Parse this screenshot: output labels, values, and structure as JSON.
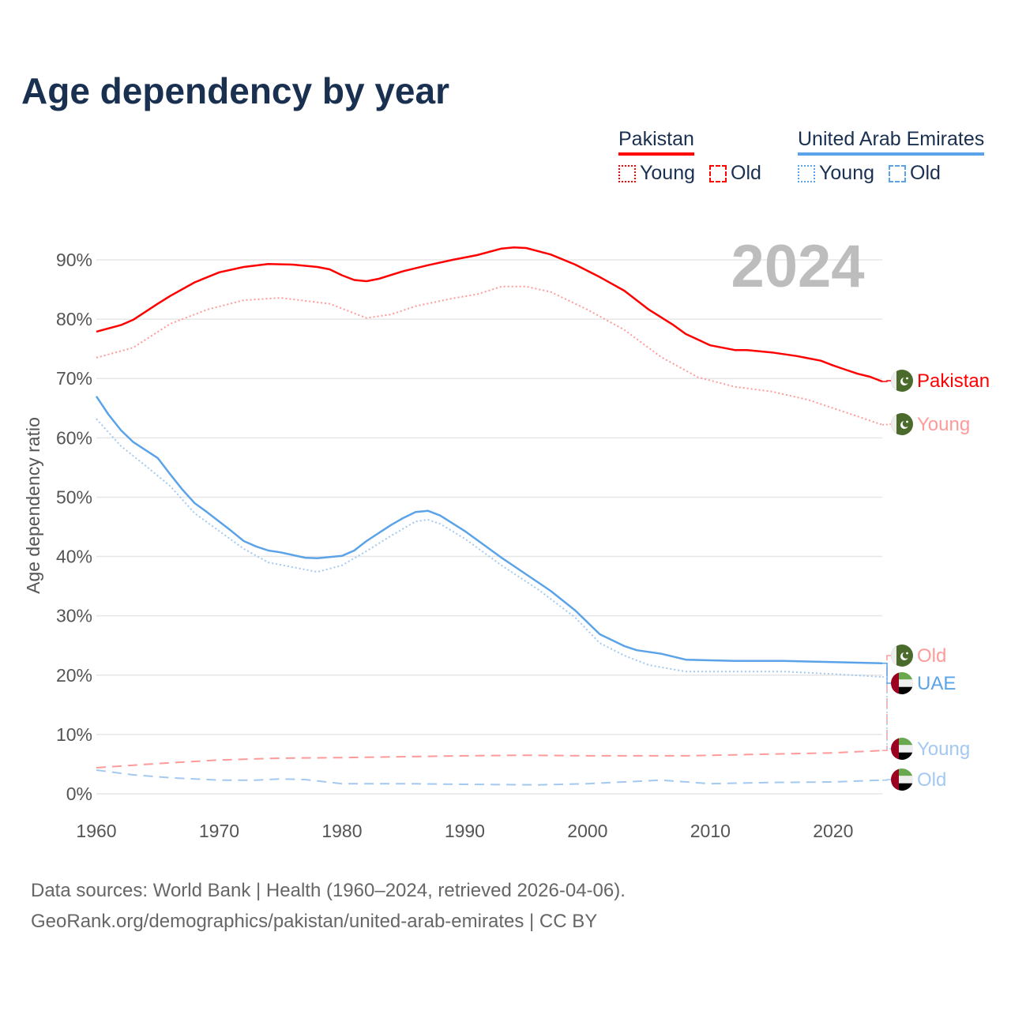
{
  "title": "Age dependency by year",
  "legend": {
    "groups": [
      {
        "name": "Pakistan",
        "color": "#ff0000",
        "items": [
          {
            "label": "Young",
            "style": "dotted"
          },
          {
            "label": "Old",
            "style": "dashed"
          }
        ]
      },
      {
        "name": "United Arab Emirates",
        "color": "#5ba3e8",
        "items": [
          {
            "label": "Young",
            "style": "dotted"
          },
          {
            "label": "Old",
            "style": "dashed"
          }
        ]
      }
    ]
  },
  "footer": {
    "line1": "Data sources: World Bank | Health (1960–2024, retrieved 2026-04-06).",
    "line2": "GeoRank.org/demographics/pakistan/united-arab-emirates | CC BY"
  },
  "chart_data": {
    "type": "line",
    "title": "Age dependency by year",
    "xlabel": "",
    "ylabel": "Age dependency ratio",
    "year_label": "2024",
    "xlim": [
      1960,
      2024
    ],
    "ylim": [
      0,
      90
    ],
    "xticks": [
      1960,
      1970,
      1980,
      1990,
      2000,
      2010,
      2020
    ],
    "yticks": [
      0,
      10,
      20,
      30,
      40,
      50,
      60,
      70,
      80,
      90
    ],
    "ytick_labels": [
      "0%",
      "10%",
      "20%",
      "30%",
      "40%",
      "50%",
      "60%",
      "70%",
      "80%",
      "90%"
    ],
    "grid": true,
    "series": [
      {
        "name": "Pakistan",
        "end_label": "Pakistan",
        "flag": "pakistan",
        "color": "#ff0000",
        "style": "solid",
        "x": [
          1960,
          1962,
          1963,
          1965,
          1966,
          1968,
          1970,
          1972,
          1974,
          1976,
          1978,
          1979,
          1980,
          1981,
          1982,
          1983,
          1985,
          1987,
          1989,
          1991,
          1993,
          1994,
          1995,
          1997,
          1999,
          2001,
          2003,
          2005,
          2007,
          2008,
          2010,
          2012,
          2013,
          2015,
          2017,
          2019,
          2020,
          2021,
          2022,
          2023,
          2024
        ],
        "y": [
          77.9,
          79.0,
          79.9,
          82.6,
          83.9,
          86.2,
          87.9,
          88.8,
          89.3,
          89.2,
          88.8,
          88.4,
          87.4,
          86.6,
          86.4,
          86.8,
          88.1,
          89.1,
          90.0,
          90.8,
          91.9,
          92.1,
          92.0,
          90.9,
          89.2,
          87.1,
          84.8,
          81.6,
          79.0,
          77.5,
          75.6,
          74.8,
          74.8,
          74.4,
          73.8,
          73.0,
          72.2,
          71.5,
          70.8,
          70.3,
          69.5
        ]
      },
      {
        "name": "Pakistan Young",
        "end_label": "Young",
        "flag": "pakistan",
        "color": "#ff9a9a",
        "style": "dotted",
        "x": [
          1960,
          1963,
          1966,
          1969,
          1972,
          1975,
          1979,
          1982,
          1984,
          1986,
          1989,
          1991,
          1993,
          1995,
          1997,
          2000,
          2003,
          2006,
          2009,
          2012,
          2015,
          2018,
          2021,
          2024
        ],
        "y": [
          73.5,
          75.2,
          79.2,
          81.6,
          83.2,
          83.6,
          82.6,
          80.2,
          80.8,
          82.2,
          83.5,
          84.2,
          85.5,
          85.5,
          84.6,
          81.6,
          78.2,
          73.6,
          70.2,
          68.6,
          67.8,
          66.4,
          64.3,
          62.2
        ]
      },
      {
        "name": "Pakistan Old",
        "end_label": "Old",
        "flag": "pakistan",
        "color": "#ff9a9a",
        "style": "dashed",
        "x": [
          1960,
          1965,
          1970,
          1975,
          1980,
          1990,
          1995,
          2000,
          2008,
          2015,
          2020,
          2024
        ],
        "y": [
          4.4,
          5.1,
          5.7,
          6.0,
          6.1,
          6.4,
          6.5,
          6.4,
          6.4,
          6.7,
          6.9,
          7.3
        ]
      },
      {
        "name": "UAE",
        "end_label": "UAE",
        "flag": "uae",
        "color": "#5ba3e8",
        "style": "solid",
        "x": [
          1960,
          1961,
          1962,
          1963,
          1965,
          1966,
          1967,
          1968,
          1969,
          1971,
          1972,
          1973,
          1974,
          1975,
          1977,
          1978,
          1980,
          1981,
          1982,
          1984,
          1985,
          1986,
          1987,
          1988,
          1990,
          1993,
          1996,
          1997,
          1999,
          2001,
          2003,
          2004,
          2006,
          2008,
          2012,
          2016,
          2020,
          2024
        ],
        "y": [
          67.0,
          63.9,
          61.3,
          59.3,
          56.6,
          53.9,
          51.3,
          49.0,
          47.5,
          44.3,
          42.6,
          41.7,
          41.0,
          40.7,
          39.8,
          39.7,
          40.1,
          41.0,
          42.6,
          45.3,
          46.5,
          47.5,
          47.7,
          46.9,
          44.3,
          39.8,
          35.6,
          34.2,
          30.9,
          26.9,
          24.9,
          24.2,
          23.6,
          22.6,
          22.4,
          22.4,
          22.2,
          22.0
        ]
      },
      {
        "name": "UAE Young",
        "end_label": "Young",
        "flag": "uae",
        "color": "#a3c9f1",
        "style": "dotted",
        "x": [
          1960,
          1962,
          1964,
          1966,
          1968,
          1970,
          1972,
          1974,
          1976,
          1978,
          1980,
          1982,
          1984,
          1986,
          1987,
          1988,
          1990,
          1993,
          1996,
          1999,
          2001,
          2003,
          2005,
          2008,
          2012,
          2016,
          2020,
          2024
        ],
        "y": [
          63.2,
          58.6,
          55.3,
          51.9,
          47.3,
          44.3,
          41.3,
          39.0,
          38.2,
          37.4,
          38.5,
          40.9,
          43.5,
          45.9,
          46.2,
          45.5,
          43.0,
          38.5,
          34.4,
          29.7,
          25.4,
          23.3,
          21.7,
          20.6,
          20.6,
          20.6,
          20.2,
          19.7
        ]
      },
      {
        "name": "UAE Old",
        "end_label": "Old",
        "flag": "uae",
        "color": "#a3c9f1",
        "style": "dashed",
        "x": [
          1960,
          1963,
          1966,
          1970,
          1973,
          1975,
          1977,
          1980,
          1985,
          1990,
          1996,
          2000,
          2006,
          2010,
          2015,
          2020,
          2024
        ],
        "y": [
          4.0,
          3.2,
          2.7,
          2.3,
          2.3,
          2.5,
          2.4,
          1.7,
          1.7,
          1.6,
          1.5,
          1.7,
          2.3,
          1.7,
          1.9,
          2.0,
          2.3
        ]
      }
    ]
  }
}
